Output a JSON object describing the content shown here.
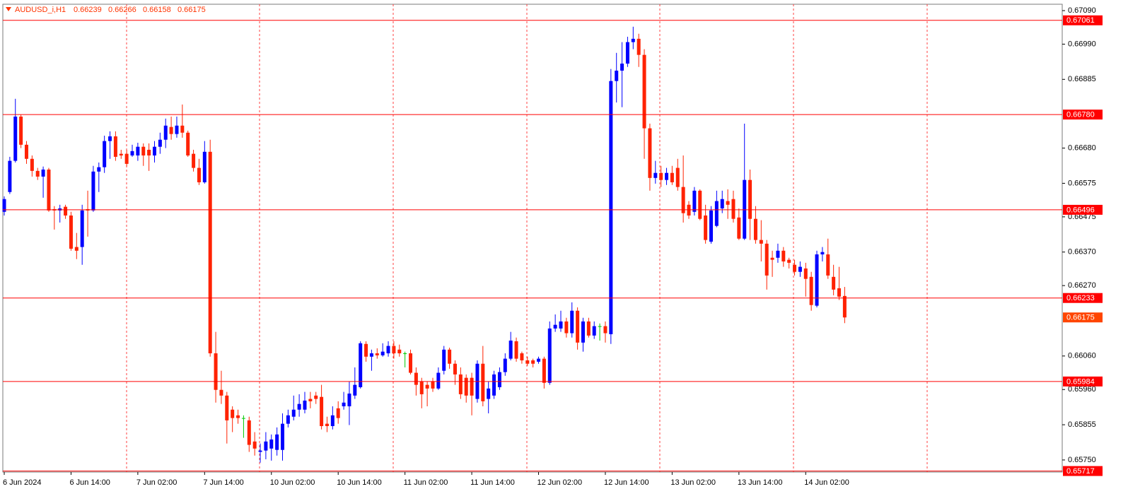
{
  "chart_data": {
    "type": "candlestick",
    "title": "AUDUSD_i,H1",
    "categories": [
      "6 Jun 2024",
      null,
      null,
      null,
      null,
      null,
      null,
      null,
      null,
      null,
      null,
      null,
      "6 Jun 14:00",
      null,
      null,
      null,
      null,
      null,
      null,
      null,
      null,
      null,
      null,
      null,
      "7 Jun 02:00",
      null,
      null,
      null,
      null,
      null,
      null,
      null,
      null,
      null,
      null,
      null,
      "7 Jun 14:00",
      null,
      null,
      null,
      null,
      null,
      null,
      null,
      null,
      null,
      null,
      null,
      "10 Jun 02:00",
      null,
      null,
      null,
      null,
      null,
      null,
      null,
      null,
      null,
      null,
      null,
      "10 Jun 14:00",
      null,
      null,
      null,
      null,
      null,
      null,
      null,
      null,
      null,
      null,
      null,
      "11 Jun 02:00",
      null,
      null,
      null,
      null,
      null,
      null,
      null,
      null,
      null,
      null,
      null,
      "11 Jun 14:00",
      null,
      null,
      null,
      null,
      null,
      null,
      null,
      null,
      null,
      null,
      null,
      "12 Jun 02:00",
      null,
      null,
      null,
      null,
      null,
      null,
      null,
      null,
      null,
      null,
      null,
      "12 Jun 14:00",
      null,
      null,
      null,
      null,
      null,
      null,
      null,
      null,
      null,
      null,
      null,
      "13 Jun 02:00",
      null,
      null,
      null,
      null,
      null,
      null,
      null,
      null,
      null,
      null,
      null,
      "13 Jun 14:00",
      null,
      null,
      null,
      null,
      null,
      null,
      null,
      null,
      null,
      null,
      null,
      "14 Jun 02:00",
      null,
      null,
      null,
      null,
      null,
      null,
      null
    ],
    "open": [
      0.6649,
      0.66549,
      0.66642,
      0.66774,
      0.6669,
      0.66648,
      0.66612,
      0.66595,
      0.66616,
      0.66498,
      0.66494,
      0.66505,
      0.66479,
      0.66385,
      0.66385,
      0.66498,
      0.66494,
      0.6661,
      0.66623,
      0.66701,
      0.66715,
      0.66663,
      0.66663,
      0.66658,
      0.66658,
      0.66684,
      0.66675,
      0.66658,
      0.66684,
      0.66705,
      0.66743,
      0.66722,
      0.66747,
      0.66726,
      0.66663,
      0.66621,
      0.66578,
      0.66669,
      0.66068,
      0.65959,
      0.65942,
      0.659,
      0.65883,
      0.65875,
      0.65868,
      0.65805,
      0.65774,
      0.65778,
      0.65784,
      0.6578,
      0.6578,
      0.65858,
      0.65879,
      0.659,
      0.659,
      0.65932,
      0.65942,
      0.65938,
      0.65858,
      0.65851,
      0.65904,
      0.6591,
      0.6591,
      0.65942,
      0.65967,
      0.66096,
      0.66058,
      0.66068,
      0.66062,
      0.66068,
      0.6609,
      0.66079,
      0.66068,
      0.66068,
      0.6601,
      0.65984,
      0.65974,
      0.65984,
      0.65963,
      0.66016,
      0.66079,
      0.66037,
      0.66005,
      0.65995,
      0.65995,
      0.65932,
      0.66037,
      0.65932,
      0.65942,
      0.65967,
      0.66012,
      0.66052,
      0.66104,
      0.66068,
      0.66047,
      0.66047,
      0.66043,
      0.66052,
      0.6598,
      0.66142,
      0.66142,
      0.66163,
      0.66128,
      0.66195,
      0.661,
      0.66163,
      0.66121,
      0.66149,
      0.66149,
      0.66125,
      0.6688,
      0.66911,
      0.66932,
      0.66996,
      0.67006,
      0.66958,
      0.66739,
      0.66591,
      0.66606,
      0.66585,
      0.66606,
      0.66621,
      0.66564,
      0.66511,
      0.6649,
      0.66553,
      0.66479,
      0.66401,
      0.66448,
      0.665,
      0.66522,
      0.66528,
      0.66473,
      0.6641,
      0.66585,
      0.66469,
      0.66406,
      0.66395,
      0.66353,
      0.66353,
      0.66374,
      0.66347,
      0.66332,
      0.66311,
      0.66321,
      0.66296,
      0.6621,
      0.66363,
      0.66363,
      0.66296,
      0.66262,
      0.66239
    ],
    "high": [
      0.66536,
      0.66654,
      0.66827,
      0.66779,
      0.66701,
      0.66658,
      0.66621,
      0.66625,
      0.66621,
      0.66507,
      0.66511,
      0.66511,
      0.6649,
      0.66427,
      0.66511,
      0.66553,
      0.66627,
      0.66637,
      0.66717,
      0.6673,
      0.6673,
      0.66675,
      0.66675,
      0.6669,
      0.66696,
      0.66694,
      0.66694,
      0.66701,
      0.66726,
      0.66768,
      0.66774,
      0.66774,
      0.6681,
      0.66732,
      0.66675,
      0.66648,
      0.66701,
      0.66705,
      0.66132,
      0.66016,
      0.65953,
      0.6591,
      0.659,
      0.65883,
      0.65879,
      0.65833,
      0.65799,
      0.65833,
      0.65826,
      0.65847,
      0.65889,
      0.659,
      0.65942,
      0.65946,
      0.65953,
      0.65953,
      0.65953,
      0.65974,
      0.65879,
      0.6591,
      0.65925,
      0.65953,
      0.65984,
      0.66026,
      0.66104,
      0.66104,
      0.66079,
      0.66083,
      0.66098,
      0.66104,
      0.66104,
      0.66094,
      0.66073,
      0.66079,
      0.66026,
      0.65995,
      0.65984,
      0.65995,
      0.66026,
      0.6609,
      0.66085,
      0.66047,
      0.66026,
      0.66005,
      0.6601,
      0.66047,
      0.6609,
      0.65984,
      0.66016,
      0.66026,
      0.66068,
      0.66132,
      0.66115,
      0.66073,
      0.66058,
      0.66052,
      0.66058,
      0.66058,
      0.66163,
      0.66184,
      0.66195,
      0.66174,
      0.6622,
      0.66205,
      0.66174,
      0.66174,
      0.66163,
      0.66157,
      0.66163,
      0.66916,
      0.66964,
      0.66996,
      0.67012,
      0.67042,
      0.67021,
      0.66975,
      0.66753,
      0.66642,
      0.66627,
      0.66621,
      0.66627,
      0.66648,
      0.66658,
      0.66522,
      0.66564,
      0.66557,
      0.66511,
      0.66507,
      0.66553,
      0.66553,
      0.66557,
      0.66553,
      0.665,
      0.66753,
      0.66616,
      0.66507,
      0.66465,
      0.66406,
      0.66374,
      0.66395,
      0.66385,
      0.66353,
      0.66347,
      0.66342,
      0.66338,
      0.66311,
      0.66374,
      0.66385,
      0.6641,
      0.66332,
      0.66326,
      0.66266
    ],
    "low": [
      0.66479,
      0.66543,
      0.66637,
      0.6668,
      0.66633,
      0.66595,
      0.66585,
      0.66532,
      0.6649,
      0.66437,
      0.66458,
      0.66469,
      0.66374,
      0.66349,
      0.66332,
      0.66416,
      0.6649,
      0.66549,
      0.66606,
      0.66648,
      0.66642,
      0.66648,
      0.66625,
      0.66654,
      0.66642,
      0.66627,
      0.66612,
      0.66637,
      0.66663,
      0.6668,
      0.66705,
      0.66711,
      0.66711,
      0.66654,
      0.6661,
      0.6657,
      0.66574,
      0.66058,
      0.65921,
      0.65917,
      0.65799,
      0.65833,
      0.65858,
      0.65816,
      0.65774,
      0.65763,
      0.65742,
      0.65752,
      0.65748,
      0.65763,
      0.65748,
      0.65847,
      0.65868,
      0.65879,
      0.65889,
      0.65904,
      0.65917,
      0.65841,
      0.65833,
      0.65841,
      0.65858,
      0.659,
      0.65854,
      0.65932,
      0.65963,
      0.66043,
      0.66016,
      0.66052,
      0.66058,
      0.66058,
      0.66052,
      0.66058,
      0.66026,
      0.66005,
      0.65942,
      0.65904,
      0.6591,
      0.65953,
      0.65959,
      0.66005,
      0.66022,
      0.65974,
      0.65932,
      0.65921,
      0.65883,
      0.65921,
      0.6591,
      0.65889,
      0.65932,
      0.65959,
      0.66001,
      0.66047,
      0.66043,
      0.66037,
      0.66031,
      0.66026,
      0.66037,
      0.65963,
      0.65974,
      0.66132,
      0.66132,
      0.66115,
      0.66115,
      0.66079,
      0.66073,
      0.66115,
      0.66111,
      0.66106,
      0.661,
      0.66096,
      0.66816,
      0.66802,
      0.66922,
      0.66975,
      0.66922,
      0.66648,
      0.66553,
      0.66574,
      0.66564,
      0.6657,
      0.6657,
      0.66553,
      0.66458,
      0.66469,
      0.66479,
      0.66465,
      0.66395,
      0.66395,
      0.66444,
      0.66486,
      0.66469,
      0.66458,
      0.66406,
      0.66406,
      0.66406,
      0.66395,
      0.66342,
      0.66258,
      0.66296,
      0.66338,
      0.66326,
      0.66321,
      0.663,
      0.66296,
      0.66237,
      0.66195,
      0.66205,
      0.66342,
      0.6629,
      0.66241,
      0.66227,
      0.66158
    ],
    "close": [
      0.66528,
      0.66642,
      0.66774,
      0.6669,
      0.66648,
      0.66612,
      0.66595,
      0.66616,
      0.66494,
      0.66494,
      0.665,
      0.66479,
      0.6638,
      0.66374,
      0.66494,
      0.66494,
      0.6661,
      0.66623,
      0.66701,
      0.66715,
      0.66654,
      0.66658,
      0.66633,
      0.66671,
      0.66684,
      0.66658,
      0.66658,
      0.66684,
      0.66705,
      0.66747,
      0.66722,
      0.66747,
      0.66726,
      0.66658,
      0.66621,
      0.66578,
      0.66669,
      0.66068,
      0.65959,
      0.65942,
      0.65868,
      0.65875,
      0.65875,
      0.65875,
      0.65795,
      0.65784,
      0.65778,
      0.65805,
      0.65811,
      0.65826,
      0.65858,
      0.65883,
      0.659,
      0.65917,
      0.65927,
      0.65925,
      0.65932,
      0.65851,
      0.65851,
      0.65883,
      0.65875,
      0.65921,
      0.65948,
      0.65974,
      0.66098,
      0.66058,
      0.66068,
      0.66062,
      0.66073,
      0.6609,
      0.66068,
      0.66068,
      0.66068,
      0.6601,
      0.65974,
      0.65946,
      0.65963,
      0.65963,
      0.6601,
      0.66079,
      0.66037,
      0.66005,
      0.65946,
      0.65942,
      0.65942,
      0.66037,
      0.65925,
      0.65963,
      0.66005,
      0.66012,
      0.66052,
      0.66106,
      0.66052,
      0.66047,
      0.66037,
      0.66037,
      0.66052,
      0.6598,
      0.66142,
      0.66153,
      0.66163,
      0.66128,
      0.66195,
      0.661,
      0.66163,
      0.66121,
      0.66149,
      0.66149,
      0.66128,
      0.6688,
      0.66911,
      0.66932,
      0.66996,
      0.67006,
      0.66958,
      0.66739,
      0.66591,
      0.66606,
      0.66585,
      0.66606,
      0.66578,
      0.66564,
      0.66486,
      0.66479,
      0.66553,
      0.66469,
      0.66406,
      0.66494,
      0.66522,
      0.66528,
      0.66511,
      0.66469,
      0.6641,
      0.66585,
      0.66469,
      0.66406,
      0.66395,
      0.663,
      0.66347,
      0.66374,
      0.66342,
      0.66338,
      0.66311,
      0.66326,
      0.6629,
      0.66212,
      0.66363,
      0.6637,
      0.663,
      0.66258,
      0.66237,
      0.66175
    ],
    "up_color": "#0000ff",
    "down_color": "#ff2200",
    "doji_color": "#00c800",
    "ylim": [
      0.65714,
      0.67109
    ],
    "yticks": [
      {
        "value": 0.6709,
        "label": "0.67090"
      },
      {
        "value": 0.6699,
        "label": "0.66990"
      },
      0.66885,
      {
        "value": 0.6668,
        "label": "0.66680"
      },
      0.66575,
      0.66475,
      {
        "value": 0.6637,
        "label": "0.66370"
      },
      {
        "value": 0.6627,
        "label": "0.66270"
      },
      {
        "value": 0.6606,
        "label": "0.66060"
      },
      {
        "value": 0.6596,
        "label": "0.65960"
      },
      0.65855,
      {
        "value": 0.6575,
        "label": "0.65750"
      }
    ],
    "levels": [
      0.67061,
      {
        "value": 0.6678,
        "label": "0.66780"
      },
      0.66496,
      0.66233,
      0.65984,
      0.65717
    ],
    "level_color": "#ff0000",
    "bid_color": "#ff4500",
    "grid": false
  }
}
